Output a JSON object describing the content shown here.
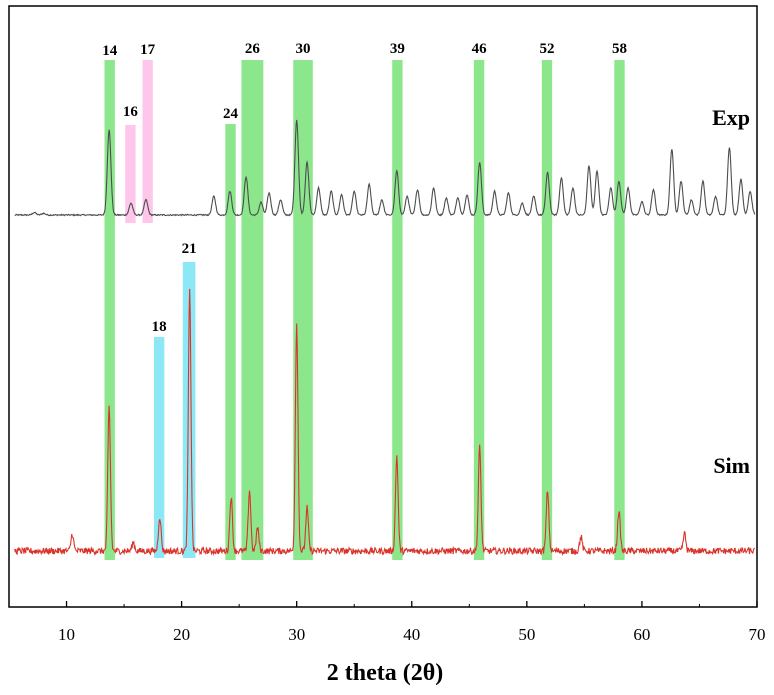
{
  "chart_data": {
    "type": "line",
    "xlabel": "2 theta (2θ)",
    "ylabel": "",
    "xlim": [
      5,
      70
    ],
    "x_ticks": [
      10,
      20,
      30,
      40,
      50,
      60,
      70
    ],
    "y_axis_shown": false,
    "grid": false,
    "series": [
      {
        "name": "Exp",
        "color": "#4d4d4d",
        "baseline": 0,
        "peaks": [
          {
            "x": 7.2,
            "h": 0.03
          },
          {
            "x": 8.0,
            "h": 0.02
          },
          {
            "x": 13.7,
            "h": 1.0
          },
          {
            "x": 15.6,
            "h": 0.14
          },
          {
            "x": 16.9,
            "h": 0.18
          },
          {
            "x": 22.8,
            "h": 0.22
          },
          {
            "x": 24.2,
            "h": 0.28
          },
          {
            "x": 25.6,
            "h": 0.45
          },
          {
            "x": 26.9,
            "h": 0.15
          },
          {
            "x": 27.6,
            "h": 0.26
          },
          {
            "x": 28.6,
            "h": 0.18
          },
          {
            "x": 30.0,
            "h": 1.12
          },
          {
            "x": 30.9,
            "h": 0.62
          },
          {
            "x": 31.9,
            "h": 0.32
          },
          {
            "x": 33.0,
            "h": 0.28
          },
          {
            "x": 33.9,
            "h": 0.24
          },
          {
            "x": 35.0,
            "h": 0.28
          },
          {
            "x": 36.3,
            "h": 0.36
          },
          {
            "x": 37.4,
            "h": 0.18
          },
          {
            "x": 38.7,
            "h": 0.52
          },
          {
            "x": 39.6,
            "h": 0.22
          },
          {
            "x": 40.5,
            "h": 0.3
          },
          {
            "x": 41.9,
            "h": 0.32
          },
          {
            "x": 43.0,
            "h": 0.2
          },
          {
            "x": 44.0,
            "h": 0.2
          },
          {
            "x": 44.8,
            "h": 0.24
          },
          {
            "x": 45.9,
            "h": 0.62
          },
          {
            "x": 47.2,
            "h": 0.28
          },
          {
            "x": 48.4,
            "h": 0.26
          },
          {
            "x": 49.6,
            "h": 0.14
          },
          {
            "x": 50.6,
            "h": 0.22
          },
          {
            "x": 51.8,
            "h": 0.5
          },
          {
            "x": 53.0,
            "h": 0.44
          },
          {
            "x": 54.0,
            "h": 0.32
          },
          {
            "x": 55.4,
            "h": 0.58
          },
          {
            "x": 56.1,
            "h": 0.52
          },
          {
            "x": 57.3,
            "h": 0.32
          },
          {
            "x": 58.0,
            "h": 0.4
          },
          {
            "x": 58.8,
            "h": 0.32
          },
          {
            "x": 60.0,
            "h": 0.16
          },
          {
            "x": 61.0,
            "h": 0.3
          },
          {
            "x": 62.6,
            "h": 0.78
          },
          {
            "x": 63.4,
            "h": 0.4
          },
          {
            "x": 64.3,
            "h": 0.18
          },
          {
            "x": 65.3,
            "h": 0.4
          },
          {
            "x": 66.4,
            "h": 0.22
          },
          {
            "x": 67.6,
            "h": 0.8
          },
          {
            "x": 68.6,
            "h": 0.42
          },
          {
            "x": 69.4,
            "h": 0.28
          }
        ]
      },
      {
        "name": "Sim",
        "color": "#d9342b",
        "baseline": 0,
        "peaks": [
          {
            "x": 10.5,
            "h": 0.12
          },
          {
            "x": 13.7,
            "h": 1.0
          },
          {
            "x": 15.8,
            "h": 0.06
          },
          {
            "x": 18.1,
            "h": 0.24
          },
          {
            "x": 20.7,
            "h": 1.8
          },
          {
            "x": 24.3,
            "h": 0.38
          },
          {
            "x": 25.9,
            "h": 0.42
          },
          {
            "x": 26.6,
            "h": 0.16
          },
          {
            "x": 30.0,
            "h": 1.58
          },
          {
            "x": 30.9,
            "h": 0.3
          },
          {
            "x": 38.7,
            "h": 0.66
          },
          {
            "x": 45.9,
            "h": 0.72
          },
          {
            "x": 51.8,
            "h": 0.42
          },
          {
            "x": 54.7,
            "h": 0.1
          },
          {
            "x": 58.0,
            "h": 0.28
          },
          {
            "x": 63.7,
            "h": 0.12
          }
        ]
      }
    ],
    "highlight_bands": [
      {
        "label": "14",
        "color": "#66dd66",
        "x_from": 13.3,
        "x_to": 14.2,
        "group": "both"
      },
      {
        "label": "16",
        "color": "#ffb3e6",
        "x_from": 15.1,
        "x_to": 16.0,
        "group": "exp"
      },
      {
        "label": "17",
        "color": "#ffb3e6",
        "x_from": 16.6,
        "x_to": 17.5,
        "group": "exp"
      },
      {
        "label": "18",
        "color": "#66e0f0",
        "x_from": 17.6,
        "x_to": 18.5,
        "group": "sim"
      },
      {
        "label": "21",
        "color": "#66e0f0",
        "x_from": 20.1,
        "x_to": 21.2,
        "group": "sim"
      },
      {
        "label": "24",
        "color": "#66dd66",
        "x_from": 23.8,
        "x_to": 24.7,
        "group": "both"
      },
      {
        "label": "26",
        "color": "#66dd66",
        "x_from": 25.2,
        "x_to": 27.1,
        "group": "both"
      },
      {
        "label": "30",
        "color": "#66dd66",
        "x_from": 29.7,
        "x_to": 31.4,
        "group": "both"
      },
      {
        "label": "39",
        "color": "#66dd66",
        "x_from": 38.3,
        "x_to": 39.2,
        "group": "both"
      },
      {
        "label": "46",
        "color": "#66dd66",
        "x_from": 45.4,
        "x_to": 46.3,
        "group": "both"
      },
      {
        "label": "52",
        "color": "#66dd66",
        "x_from": 51.3,
        "x_to": 52.2,
        "group": "both"
      },
      {
        "label": "58",
        "color": "#66dd66",
        "x_from": 57.6,
        "x_to": 58.5,
        "group": "both"
      }
    ]
  }
}
